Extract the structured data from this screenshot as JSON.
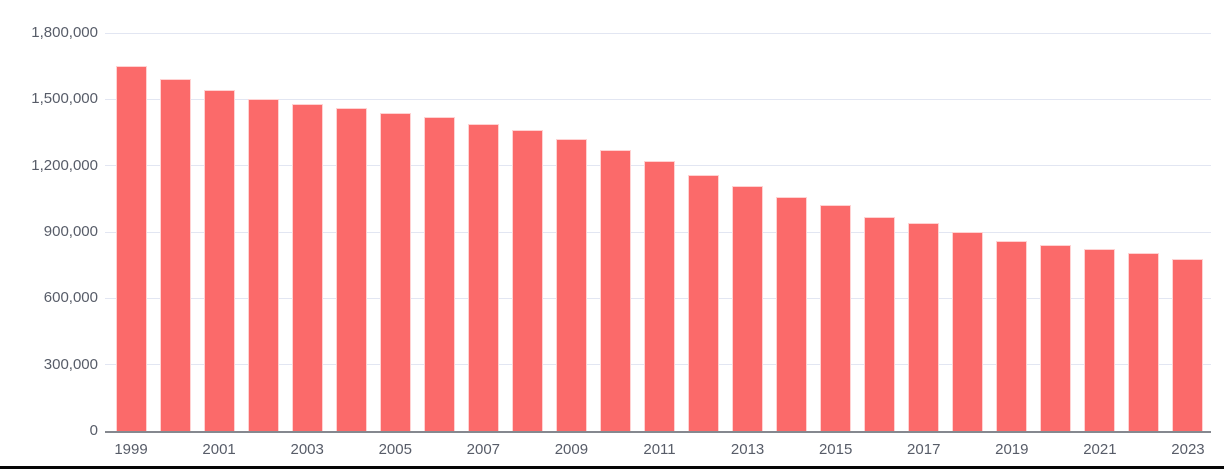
{
  "chart_data": {
    "type": "bar",
    "title": "",
    "xlabel": "",
    "ylabel": "",
    "categories": [
      1999,
      2000,
      2001,
      2002,
      2003,
      2004,
      2005,
      2006,
      2007,
      2008,
      2009,
      2010,
      2011,
      2012,
      2013,
      2014,
      2015,
      2016,
      2017,
      2018,
      2019,
      2020,
      2021,
      2022,
      2023
    ],
    "values": [
      1650000,
      1590000,
      1540000,
      1500000,
      1480000,
      1460000,
      1440000,
      1420000,
      1390000,
      1360000,
      1320000,
      1270000,
      1220000,
      1160000,
      1110000,
      1060000,
      1020000,
      970000,
      940000,
      900000,
      860000,
      840000,
      825000,
      805000,
      780000
    ],
    "ylim": [
      0,
      1800000
    ],
    "ytick_interval": 300000,
    "yticks": [
      {
        "value": 0,
        "label": "0"
      },
      {
        "value": 300000,
        "label": "300,000"
      },
      {
        "value": 600000,
        "label": "600,000"
      },
      {
        "value": 900000,
        "label": "900,000"
      },
      {
        "value": 1200000,
        "label": "1,200,000"
      },
      {
        "value": 1500000,
        "label": "1,500,000"
      },
      {
        "value": 1800000,
        "label": "1,800,000"
      }
    ],
    "xtick_labels": [
      "1999",
      "2001",
      "2003",
      "2005",
      "2007",
      "2009",
      "2011",
      "2013",
      "2015",
      "2017",
      "2019",
      "2021",
      "2023"
    ],
    "xtick_every_n_bars": 2,
    "grid": true,
    "legend": false,
    "bar_color": "#fb6a6a",
    "bar_edge_color": "#ffe4e4",
    "gridline_color": "#e2e6f2",
    "axis_line_color": "#85888f",
    "tick_label_color": "#575c68",
    "bottom_rule_color": "#050505"
  }
}
